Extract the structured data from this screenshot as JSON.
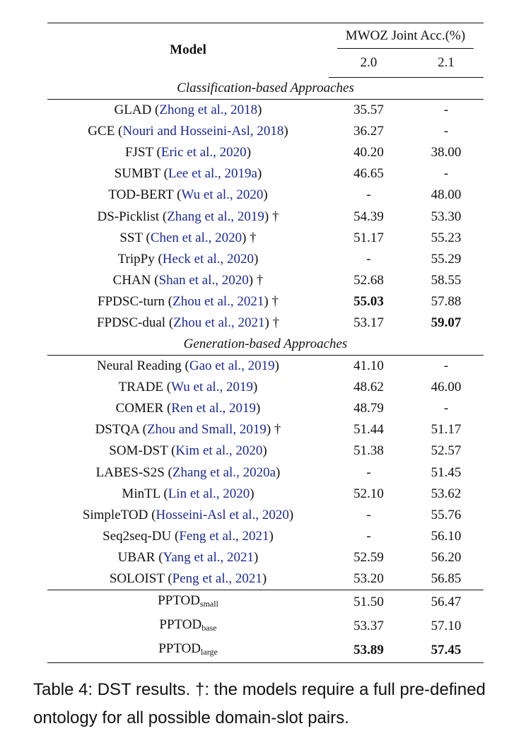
{
  "table": {
    "header": {
      "model": "Model",
      "metric_group": "MWOZ Joint Acc.(%)",
      "versions": [
        "2.0",
        "2.1"
      ]
    },
    "sections": [
      {
        "title": "Classification-based Approaches",
        "rows": [
          {
            "name": "GLAD",
            "cite": "Zhong et al., 2018",
            "dagger": "",
            "v20": "35.57",
            "v21": "-",
            "bold20": false,
            "bold21": false
          },
          {
            "name": "GCE",
            "cite": "Nouri and Hosseini-Asl, 2018",
            "dagger": "",
            "v20": "36.27",
            "v21": "-",
            "bold20": false,
            "bold21": false
          },
          {
            "name": "FJST",
            "cite": "Eric et al., 2020",
            "dagger": "",
            "v20": "40.20",
            "v21": "38.00",
            "bold20": false,
            "bold21": false
          },
          {
            "name": "SUMBT",
            "cite": "Lee et al., 2019a",
            "dagger": "",
            "v20": "46.65",
            "v21": "-",
            "bold20": false,
            "bold21": false
          },
          {
            "name": "TOD-BERT",
            "cite": "Wu et al., 2020",
            "dagger": "",
            "v20": "-",
            "v21": "48.00",
            "bold20": false,
            "bold21": false
          },
          {
            "name": "DS-Picklist",
            "cite": "Zhang et al., 2019",
            "dagger": "†",
            "v20": "54.39",
            "v21": "53.30",
            "bold20": false,
            "bold21": false
          },
          {
            "name": "SST",
            "cite": "Chen et al., 2020",
            "dagger": "†",
            "v20": "51.17",
            "v21": "55.23",
            "bold20": false,
            "bold21": false
          },
          {
            "name": "TripPy",
            "cite": "Heck et al., 2020",
            "dagger": "",
            "v20": "-",
            "v21": "55.29",
            "bold20": false,
            "bold21": false
          },
          {
            "name": "CHAN",
            "cite": "Shan et al., 2020",
            "dagger": "†",
            "v20": "52.68",
            "v21": "58.55",
            "bold20": false,
            "bold21": false
          },
          {
            "name": "FPDSC-turn",
            "cite": "Zhou et al., 2021",
            "dagger": "†",
            "v20": "55.03",
            "v21": "57.88",
            "bold20": true,
            "bold21": false
          },
          {
            "name": "FPDSC-dual",
            "cite": "Zhou et al., 2021",
            "dagger": "†",
            "v20": "53.17",
            "v21": "59.07",
            "bold20": false,
            "bold21": true
          }
        ]
      },
      {
        "title": "Generation-based Approaches",
        "rows": [
          {
            "name": "Neural Reading",
            "cite": "Gao et al., 2019",
            "dagger": "",
            "v20": "41.10",
            "v21": "-",
            "bold20": false,
            "bold21": false
          },
          {
            "name": "TRADE",
            "cite": "Wu et al., 2019",
            "dagger": "",
            "v20": "48.62",
            "v21": "46.00",
            "bold20": false,
            "bold21": false
          },
          {
            "name": "COMER",
            "cite": "Ren et al., 2019",
            "dagger": "",
            "v20": "48.79",
            "v21": "-",
            "bold20": false,
            "bold21": false
          },
          {
            "name": "DSTQA",
            "cite": "Zhou and Small, 2019",
            "dagger": "†",
            "v20": "51.44",
            "v21": "51.17",
            "bold20": false,
            "bold21": false
          },
          {
            "name": "SOM-DST",
            "cite": "Kim et al., 2020",
            "dagger": "",
            "v20": "51.38",
            "v21": "52.57",
            "bold20": false,
            "bold21": false
          },
          {
            "name": "LABES-S2S",
            "cite": "Zhang et al., 2020a",
            "dagger": "",
            "v20": "-",
            "v21": "51.45",
            "bold20": false,
            "bold21": false
          },
          {
            "name": "MinTL",
            "cite": "Lin et al., 2020",
            "dagger": "",
            "v20": "52.10",
            "v21": "53.62",
            "bold20": false,
            "bold21": false
          },
          {
            "name": "SimpleTOD",
            "cite": "Hosseini-Asl et al., 2020",
            "dagger": "",
            "v20": "-",
            "v21": "55.76",
            "bold20": false,
            "bold21": false
          },
          {
            "name": "Seq2seq-DU",
            "cite": "Feng et al., 2021",
            "dagger": "",
            "v20": "-",
            "v21": "56.10",
            "bold20": false,
            "bold21": false
          },
          {
            "name": "UBAR",
            "cite": "Yang et al., 2021",
            "dagger": "",
            "v20": "52.59",
            "v21": "56.20",
            "bold20": false,
            "bold21": false
          },
          {
            "name": "SOLOIST",
            "cite": "Peng et al., 2021",
            "dagger": "",
            "v20": "53.20",
            "v21": "56.85",
            "bold20": false,
            "bold21": false
          }
        ]
      }
    ],
    "ours": [
      {
        "name": "PPTOD",
        "sub": "small",
        "v20": "51.50",
        "v21": "56.47",
        "bold20": false,
        "bold21": false
      },
      {
        "name": "PPTOD",
        "sub": "base",
        "v20": "53.37",
        "v21": "57.10",
        "bold20": false,
        "bold21": false
      },
      {
        "name": "PPTOD",
        "sub": "large",
        "v20": "53.89",
        "v21": "57.45",
        "bold20": true,
        "bold21": true
      }
    ]
  },
  "caption": "Table 4: DST results. †: the models require a full pre-defined ontology for all possible domain-slot pairs."
}
